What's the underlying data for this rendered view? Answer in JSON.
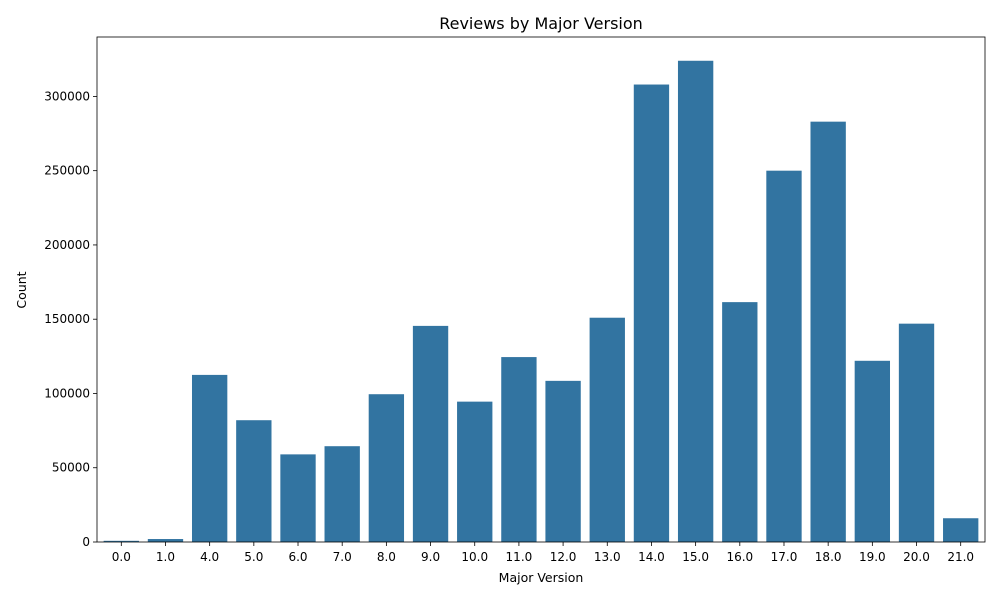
{
  "chart_data": {
    "type": "bar",
    "title": "Reviews by Major Version",
    "xlabel": "Major Version",
    "ylabel": "Count",
    "categories": [
      "0.0",
      "1.0",
      "4.0",
      "5.0",
      "6.0",
      "7.0",
      "8.0",
      "9.0",
      "10.0",
      "11.0",
      "12.0",
      "13.0",
      "14.0",
      "15.0",
      "16.0",
      "17.0",
      "18.0",
      "19.0",
      "20.0",
      "21.0"
    ],
    "values": [
      800,
      2000,
      112500,
      82000,
      59000,
      64500,
      99500,
      145500,
      94500,
      124500,
      108500,
      151000,
      308000,
      324000,
      161500,
      250000,
      283000,
      122000,
      147000,
      16000
    ],
    "ylim": [
      0,
      340000
    ],
    "yticks": [
      0,
      50000,
      100000,
      150000,
      200000,
      250000,
      300000
    ],
    "grid": false,
    "bar_color": "#3274a1"
  }
}
